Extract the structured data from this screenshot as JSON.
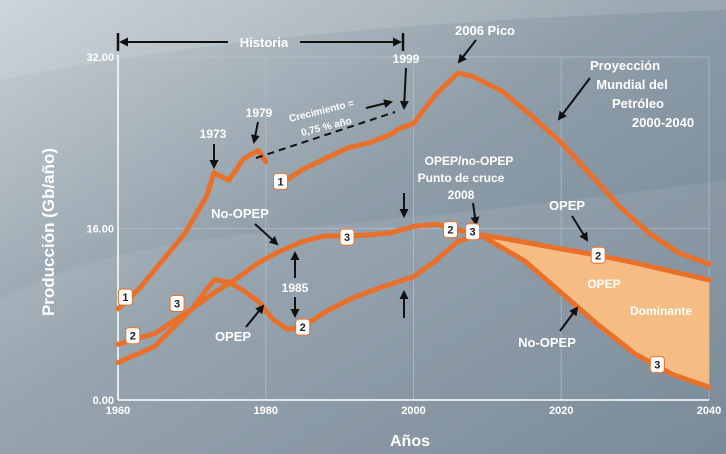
{
  "colors": {
    "line": "#e8702a",
    "fill": "#fbbf82",
    "background": "#8a9aa6",
    "text": "#ffffff",
    "grid": "#c0cad2"
  },
  "chart_data": {
    "type": "line",
    "xlabel": "Años",
    "ylabel": "Producción (Gb/año)",
    "xlim": [
      1960,
      2040
    ],
    "ylim": [
      0,
      32
    ],
    "x_ticks": [
      "1960",
      "1980",
      "2000",
      "2020",
      "2040"
    ],
    "y_ticks": [
      "0.00",
      "16.00",
      "32.00"
    ],
    "grid": true,
    "series": [
      {
        "name": "Proyección Mundial del Petróleo 2000-2040",
        "points": [
          [
            1960,
            8.5
          ],
          [
            1963,
            10.5
          ],
          [
            1966,
            13
          ],
          [
            1969,
            15.5
          ],
          [
            1972,
            19
          ],
          [
            1973,
            21.2
          ],
          [
            1975,
            20.5
          ],
          [
            1977,
            22.5
          ],
          [
            1979,
            23.3
          ],
          [
            1980,
            22.2
          ],
          [
            1981,
            21
          ],
          [
            1981.5,
            20.5
          ],
          [
            1983,
            20.6
          ],
          [
            1985,
            21.5
          ],
          [
            1988,
            22.5
          ],
          [
            1991,
            23.5
          ],
          [
            1994,
            24
          ],
          [
            1997,
            24.8
          ],
          [
            1998,
            25.3
          ],
          [
            2000,
            25.8
          ],
          [
            2003,
            28.5
          ],
          [
            2006,
            30.5
          ],
          [
            2008,
            30.2
          ],
          [
            2012,
            28.8
          ],
          [
            2016,
            26.5
          ],
          [
            2020,
            24
          ],
          [
            2024,
            21
          ],
          [
            2028,
            18
          ],
          [
            2032,
            15.5
          ],
          [
            2036,
            13.7
          ],
          [
            2040,
            12.7
          ]
        ]
      },
      {
        "name": "No-OPEP",
        "points": [
          [
            1960,
            5.2
          ],
          [
            1965,
            6.2
          ],
          [
            1970,
            8.5
          ],
          [
            1973,
            10
          ],
          [
            1976,
            11.3
          ],
          [
            1979,
            12.8
          ],
          [
            1982,
            13.9
          ],
          [
            1985,
            14.8
          ],
          [
            1988,
            15.3
          ],
          [
            1991,
            15.3
          ],
          [
            1994,
            15.4
          ],
          [
            1997,
            15.6
          ],
          [
            2000,
            16.2
          ],
          [
            2003,
            16.4
          ],
          [
            2006,
            15.9
          ],
          [
            2009,
            15.4
          ],
          [
            2012,
            15.1
          ],
          [
            2016,
            14.6
          ],
          [
            2020,
            14.1
          ],
          [
            2025,
            13.5
          ],
          [
            2030,
            12.8
          ],
          [
            2035,
            12
          ],
          [
            2040,
            11.2
          ]
        ]
      },
      {
        "name": "OPEP",
        "points": [
          [
            1960,
            3.5
          ],
          [
            1965,
            5
          ],
          [
            1970,
            8.5
          ],
          [
            1973,
            11.2
          ],
          [
            1975,
            11
          ],
          [
            1977,
            10.2
          ],
          [
            1979,
            9.2
          ],
          [
            1981,
            7.5
          ],
          [
            1983,
            6.6
          ],
          [
            1985,
            6.8
          ],
          [
            1988,
            8.2
          ],
          [
            1992,
            9.6
          ],
          [
            1996,
            10.6
          ],
          [
            2000,
            11.5
          ],
          [
            2003,
            13
          ],
          [
            2006,
            14.8
          ],
          [
            2009,
            15.4
          ],
          [
            2015,
            13
          ],
          [
            2020,
            10
          ],
          [
            2025,
            7
          ],
          [
            2030,
            4.3
          ],
          [
            2035,
            2.4
          ],
          [
            2040,
            1.2
          ]
        ]
      }
    ],
    "annotations": {
      "historia": "Historia",
      "pico": "2006 Pico",
      "proyeccion_1": "Proyección",
      "proyeccion_2": "Mundial del",
      "proyeccion_3": "Petróleo",
      "proyeccion_4": "2000-2040",
      "y1999": "1999",
      "y1979": "1979",
      "y1973": "1973",
      "crec_1": "Crecimiento =",
      "crec_2": "0,75 % año",
      "cruce_1": "OPEP/no-OPEP",
      "cruce_2": "Punto de cruce",
      "cruce_3": "2008",
      "no_opep": "No-OPEP",
      "opep_left": "OPEP",
      "y1985": "1985",
      "opep_right": "OPEP",
      "opep_dom_1": "OPEP",
      "opep_dom_2": "Dominante",
      "no_opep_right": "No-OPEP"
    },
    "badges": [
      "1",
      "2",
      "3",
      "1",
      "3",
      "2",
      "2",
      "3",
      "2",
      "3"
    ]
  }
}
